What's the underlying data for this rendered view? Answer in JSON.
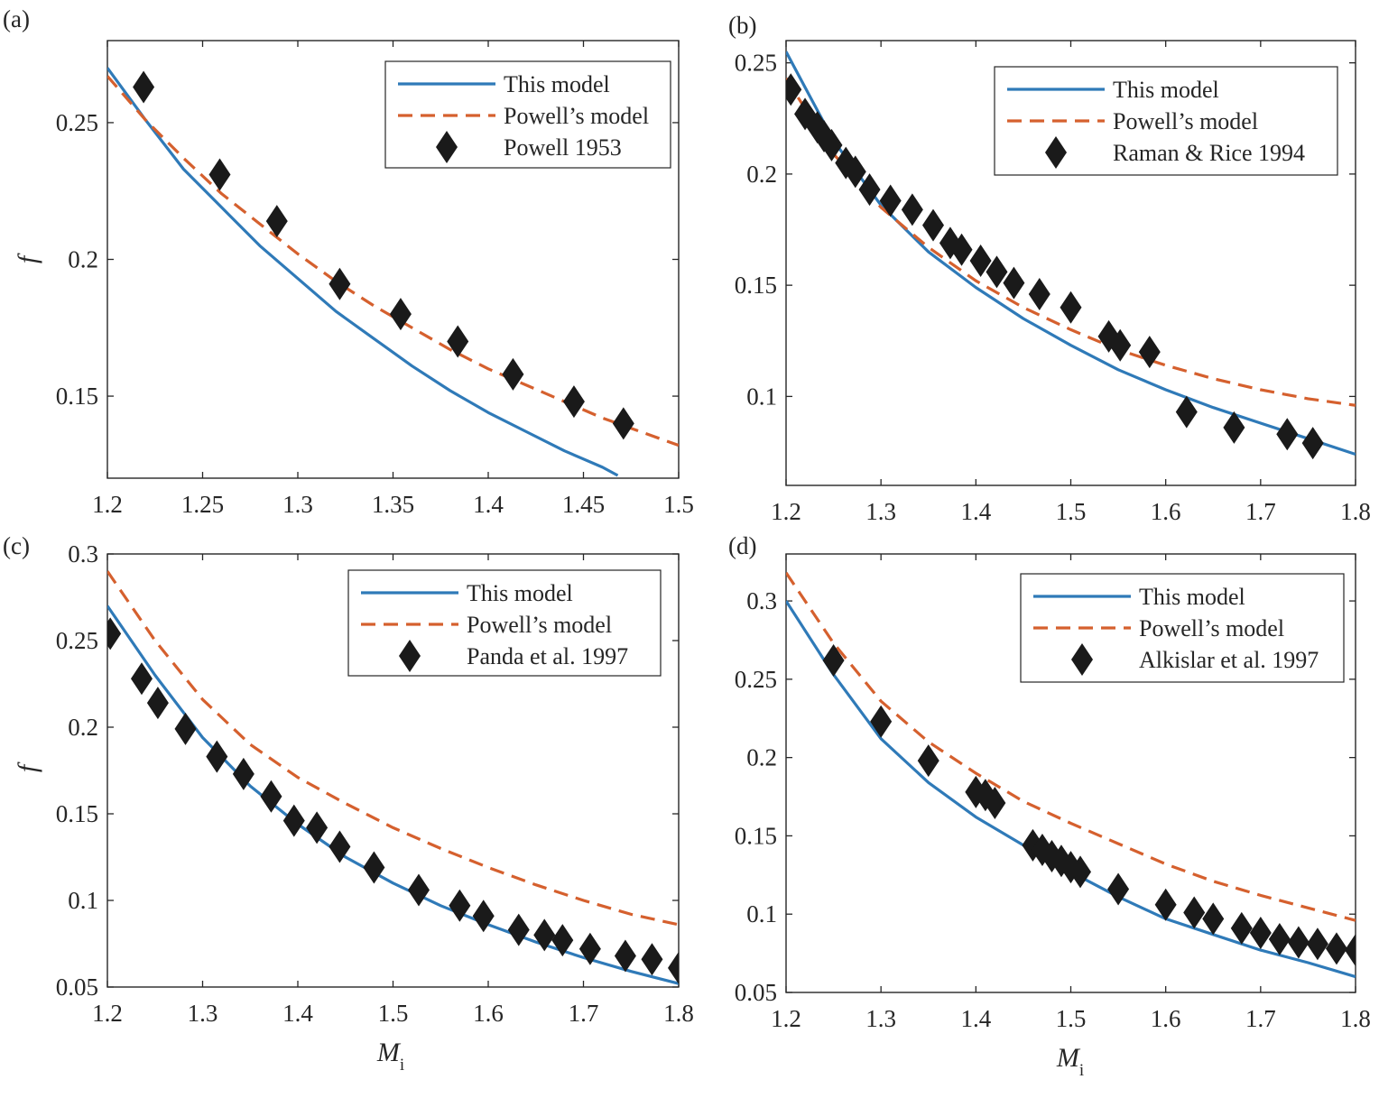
{
  "chart_data": [
    {
      "type": "line",
      "panel_label": "(a)",
      "xlabel": "",
      "ylabel": "f",
      "xlim": [
        1.2,
        1.5
      ],
      "ylim": [
        0.12,
        0.28
      ],
      "xticks": [
        1.2,
        1.25,
        1.3,
        1.35,
        1.4,
        1.45,
        1.5
      ],
      "xtick_labels": [
        "1.2",
        "1.25",
        "1.3",
        "1.35",
        "1.4",
        "1.45",
        "1.5"
      ],
      "yticks": [
        0.15,
        0.2,
        0.25
      ],
      "ytick_labels": [
        "0.15",
        "0.2",
        "0.25"
      ],
      "legend_position": "top-right",
      "series": [
        {
          "name": "This model",
          "style": "solid",
          "color": "#2f7ab8",
          "x": [
            1.2,
            1.22,
            1.24,
            1.26,
            1.28,
            1.3,
            1.32,
            1.34,
            1.36,
            1.38,
            1.4,
            1.42,
            1.44,
            1.46,
            1.468
          ],
          "y": [
            0.27,
            0.251,
            0.233,
            0.219,
            0.205,
            0.193,
            0.181,
            0.171,
            0.161,
            0.152,
            0.144,
            0.137,
            0.13,
            0.124,
            0.121
          ]
        },
        {
          "name": "Powell’s model",
          "style": "dashed",
          "color": "#d5602e",
          "x": [
            1.2,
            1.22,
            1.24,
            1.26,
            1.28,
            1.3,
            1.32,
            1.34,
            1.36,
            1.38,
            1.4,
            1.42,
            1.44,
            1.46,
            1.48,
            1.5
          ],
          "y": [
            0.267,
            0.251,
            0.237,
            0.224,
            0.213,
            0.202,
            0.192,
            0.183,
            0.175,
            0.167,
            0.16,
            0.154,
            0.148,
            0.142,
            0.137,
            0.132
          ]
        },
        {
          "name": "Powell 1953",
          "style": "markers",
          "color": "#1a1a1a",
          "x": [
            1.219,
            1.259,
            1.289,
            1.322,
            1.354,
            1.384,
            1.413,
            1.445,
            1.471
          ],
          "y": [
            0.263,
            0.231,
            0.214,
            0.191,
            0.18,
            0.17,
            0.158,
            0.148,
            0.14
          ]
        }
      ]
    },
    {
      "type": "line",
      "panel_label": "(b)",
      "xlabel": "",
      "ylabel": "",
      "xlim": [
        1.2,
        1.8
      ],
      "ylim": [
        0.06,
        0.26
      ],
      "xticks": [
        1.2,
        1.3,
        1.4,
        1.5,
        1.6,
        1.7,
        1.8
      ],
      "xtick_labels": [
        "1.2",
        "1.3",
        "1.4",
        "1.5",
        "1.6",
        "1.7",
        "1.8"
      ],
      "yticks": [
        0.1,
        0.15,
        0.2,
        0.25
      ],
      "ytick_labels": [
        "0.1",
        "0.15",
        "0.2",
        "0.25"
      ],
      "legend_position": "top-right",
      "series": [
        {
          "name": "This model",
          "style": "solid",
          "color": "#2f7ab8",
          "x": [
            1.2,
            1.25,
            1.3,
            1.35,
            1.4,
            1.45,
            1.5,
            1.55,
            1.6,
            1.65,
            1.7,
            1.75,
            1.8
          ],
          "y": [
            0.255,
            0.215,
            0.186,
            0.165,
            0.149,
            0.135,
            0.123,
            0.112,
            0.103,
            0.095,
            0.088,
            0.081,
            0.074
          ]
        },
        {
          "name": "Powell’s model",
          "style": "dashed",
          "color": "#d5602e",
          "x": [
            1.2,
            1.25,
            1.3,
            1.35,
            1.4,
            1.45,
            1.5,
            1.55,
            1.6,
            1.65,
            1.7,
            1.75,
            1.8
          ],
          "y": [
            0.243,
            0.209,
            0.185,
            0.167,
            0.152,
            0.14,
            0.13,
            0.121,
            0.114,
            0.108,
            0.103,
            0.099,
            0.096
          ]
        },
        {
          "name": "Raman & Rice 1994",
          "style": "markers",
          "color": "#1a1a1a",
          "x": [
            1.205,
            1.22,
            1.233,
            1.24,
            1.248,
            1.263,
            1.273,
            1.288,
            1.31,
            1.333,
            1.355,
            1.373,
            1.385,
            1.405,
            1.422,
            1.44,
            1.467,
            1.5,
            1.54,
            1.552,
            1.583,
            1.622,
            1.672,
            1.728,
            1.755
          ],
          "y": [
            0.238,
            0.227,
            0.221,
            0.217,
            0.213,
            0.205,
            0.201,
            0.193,
            0.188,
            0.184,
            0.177,
            0.169,
            0.166,
            0.161,
            0.156,
            0.151,
            0.146,
            0.14,
            0.127,
            0.123,
            0.12,
            0.093,
            0.086,
            0.083,
            0.079
          ]
        }
      ]
    },
    {
      "type": "line",
      "panel_label": "(c)",
      "xlabel": "M",
      "xlabel_subscript": "i",
      "ylabel": "f",
      "xlim": [
        1.2,
        1.8
      ],
      "ylim": [
        0.05,
        0.3
      ],
      "xticks": [
        1.2,
        1.3,
        1.4,
        1.5,
        1.6,
        1.7,
        1.8
      ],
      "xtick_labels": [
        "1.2",
        "1.3",
        "1.4",
        "1.5",
        "1.6",
        "1.7",
        "1.8"
      ],
      "yticks": [
        0.05,
        0.1,
        0.15,
        0.2,
        0.25,
        0.3
      ],
      "ytick_labels": [
        "0.05",
        "0.1",
        "0.15",
        "0.2",
        "0.25",
        "0.3"
      ],
      "legend_position": "top-right",
      "series": [
        {
          "name": "This model",
          "style": "solid",
          "color": "#2f7ab8",
          "x": [
            1.2,
            1.25,
            1.3,
            1.35,
            1.4,
            1.45,
            1.5,
            1.55,
            1.6,
            1.65,
            1.7,
            1.75,
            1.8
          ],
          "y": [
            0.27,
            0.23,
            0.194,
            0.166,
            0.144,
            0.125,
            0.11,
            0.097,
            0.086,
            0.076,
            0.067,
            0.059,
            0.052
          ]
        },
        {
          "name": "Powell’s model",
          "style": "dashed",
          "color": "#d5602e",
          "x": [
            1.2,
            1.25,
            1.3,
            1.35,
            1.4,
            1.45,
            1.5,
            1.55,
            1.6,
            1.65,
            1.7,
            1.75,
            1.8
          ],
          "y": [
            0.29,
            0.25,
            0.216,
            0.19,
            0.171,
            0.156,
            0.142,
            0.13,
            0.119,
            0.109,
            0.1,
            0.092,
            0.086
          ]
        },
        {
          "name": "Panda et al. 1997",
          "style": "markers",
          "color": "#1a1a1a",
          "x": [
            1.203,
            1.236,
            1.253,
            1.282,
            1.315,
            1.343,
            1.372,
            1.396,
            1.42,
            1.444,
            1.48,
            1.527,
            1.57,
            1.595,
            1.632,
            1.659,
            1.678,
            1.707,
            1.744,
            1.772,
            1.8
          ],
          "y": [
            0.254,
            0.228,
            0.214,
            0.199,
            0.183,
            0.173,
            0.16,
            0.146,
            0.142,
            0.131,
            0.119,
            0.106,
            0.097,
            0.091,
            0.083,
            0.08,
            0.077,
            0.072,
            0.068,
            0.066,
            0.061
          ]
        }
      ]
    },
    {
      "type": "line",
      "panel_label": "(d)",
      "xlabel": "M",
      "xlabel_subscript": "i",
      "ylabel": "",
      "xlim": [
        1.2,
        1.8
      ],
      "ylim": [
        0.05,
        0.33
      ],
      "xticks": [
        1.2,
        1.3,
        1.4,
        1.5,
        1.6,
        1.7,
        1.8
      ],
      "xtick_labels": [
        "1.2",
        "1.3",
        "1.4",
        "1.5",
        "1.6",
        "1.7",
        "1.8"
      ],
      "yticks": [
        0.05,
        0.1,
        0.15,
        0.2,
        0.25,
        0.3
      ],
      "ytick_labels": [
        "0.05",
        "0.1",
        "0.15",
        "0.2",
        "0.25",
        "0.3"
      ],
      "legend_position": "top-right",
      "series": [
        {
          "name": "This model",
          "style": "solid",
          "color": "#2f7ab8",
          "x": [
            1.2,
            1.25,
            1.3,
            1.35,
            1.4,
            1.45,
            1.5,
            1.55,
            1.6,
            1.65,
            1.7,
            1.75,
            1.8
          ],
          "y": [
            0.3,
            0.253,
            0.212,
            0.184,
            0.162,
            0.144,
            0.127,
            0.111,
            0.097,
            0.087,
            0.077,
            0.069,
            0.06
          ]
        },
        {
          "name": "Powell’s model",
          "style": "dashed",
          "color": "#d5602e",
          "x": [
            1.2,
            1.25,
            1.3,
            1.35,
            1.4,
            1.45,
            1.5,
            1.55,
            1.6,
            1.65,
            1.7,
            1.75,
            1.8
          ],
          "y": [
            0.318,
            0.273,
            0.236,
            0.21,
            0.19,
            0.172,
            0.158,
            0.145,
            0.132,
            0.121,
            0.112,
            0.104,
            0.096
          ]
        },
        {
          "name": "Alkislar et al. 1997",
          "style": "markers",
          "color": "#1a1a1a",
          "x": [
            1.25,
            1.3,
            1.35,
            1.4,
            1.41,
            1.42,
            1.46,
            1.47,
            1.48,
            1.49,
            1.5,
            1.51,
            1.55,
            1.6,
            1.63,
            1.65,
            1.68,
            1.7,
            1.72,
            1.74,
            1.76,
            1.78,
            1.8
          ],
          "y": [
            0.262,
            0.223,
            0.198,
            0.178,
            0.176,
            0.171,
            0.144,
            0.141,
            0.137,
            0.134,
            0.13,
            0.127,
            0.116,
            0.106,
            0.101,
            0.097,
            0.091,
            0.088,
            0.084,
            0.082,
            0.081,
            0.078,
            0.077
          ]
        }
      ]
    }
  ]
}
